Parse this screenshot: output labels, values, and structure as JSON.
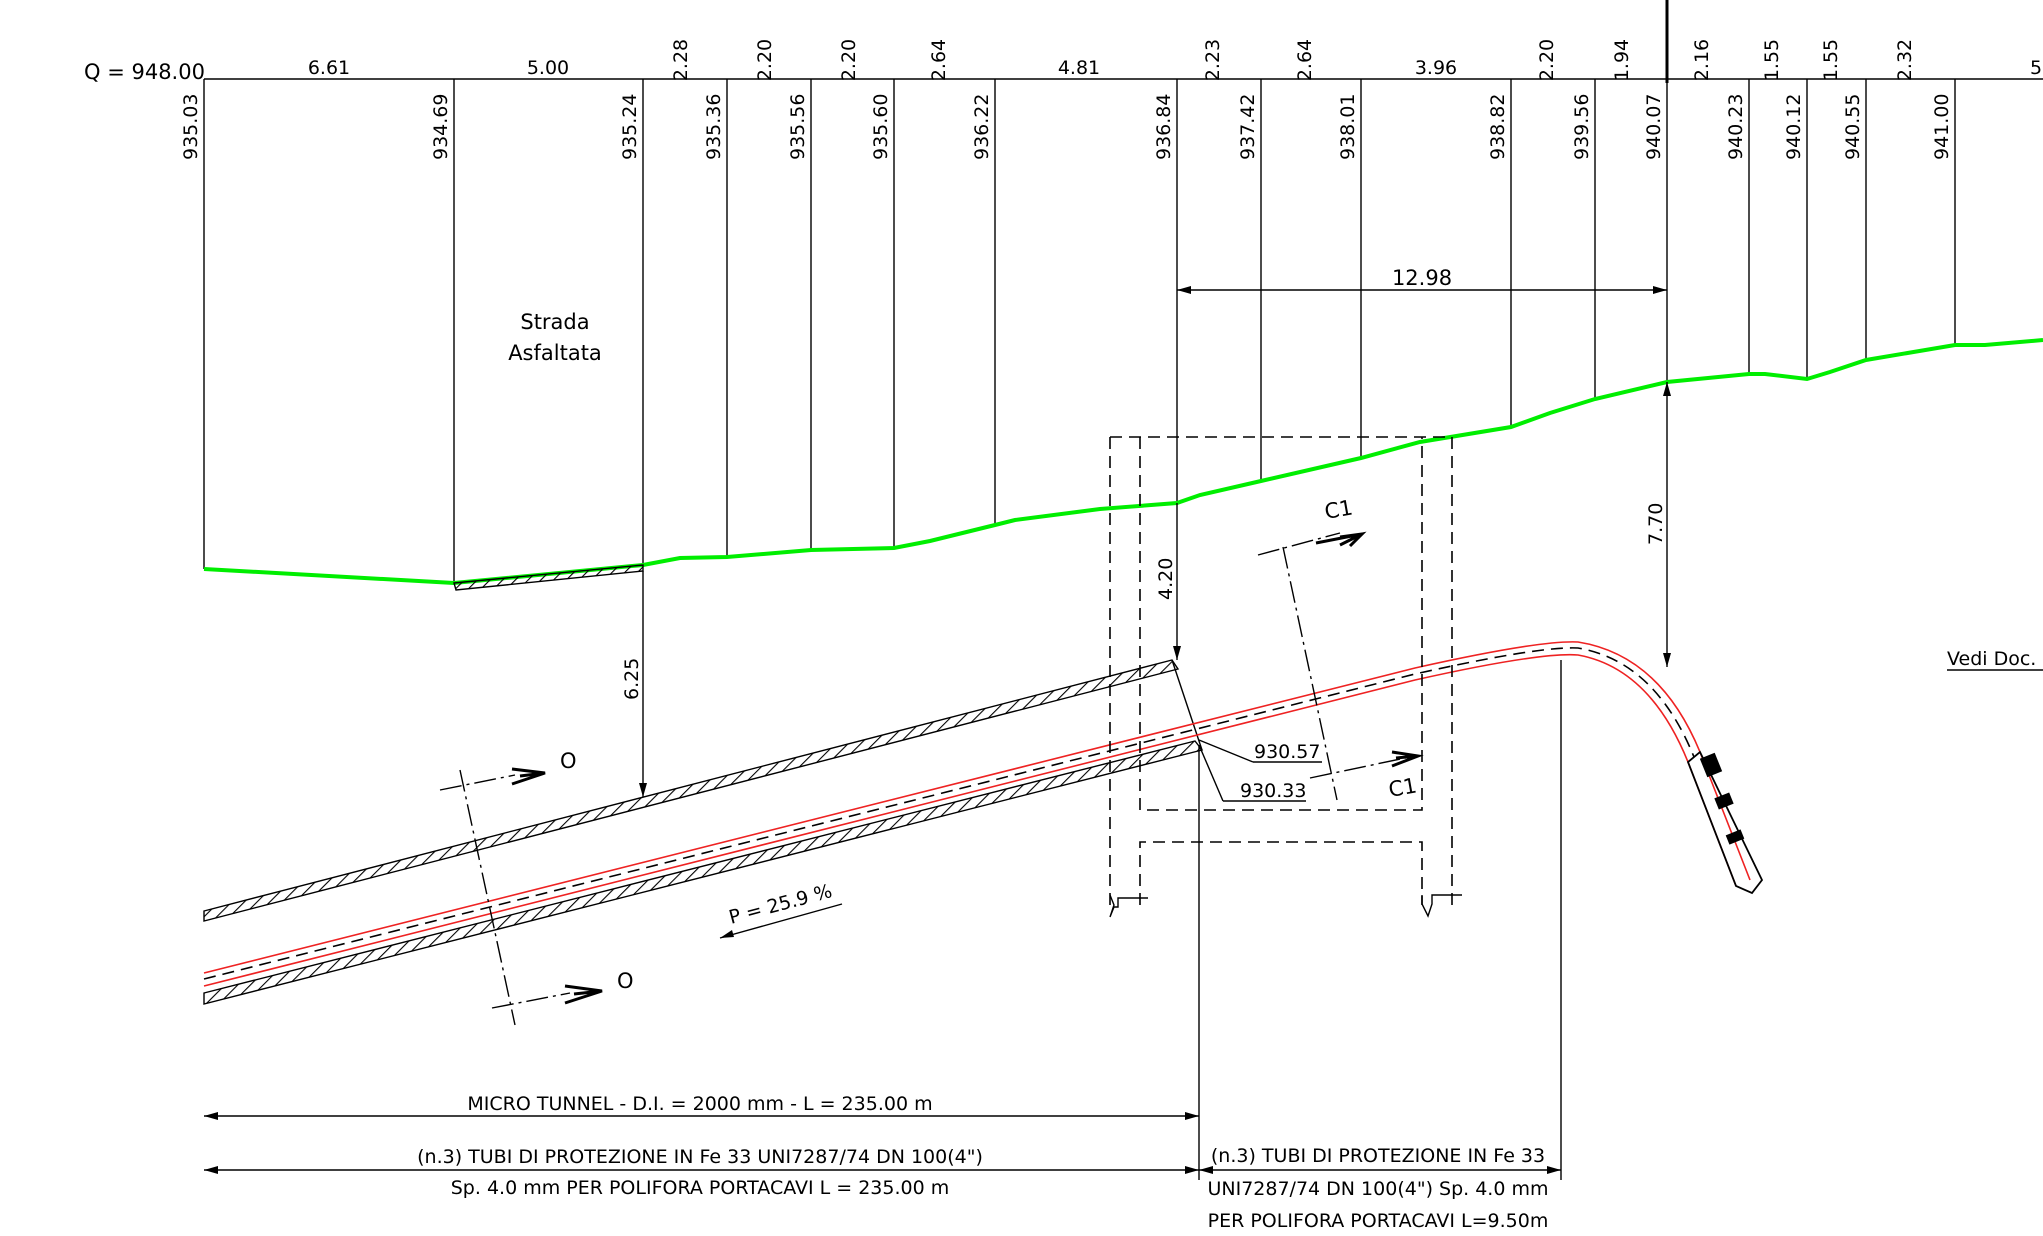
{
  "header": {
    "datum": "Q = 948.00",
    "distances": [
      "6.61",
      "5.00",
      "2.28",
      "2.20",
      "2.20",
      "2.64",
      "4.81",
      "2.23",
      "2.64",
      "3.96",
      "2.20",
      "1.94",
      "2.16",
      "1.55",
      "1.55",
      "2.32",
      "5"
    ],
    "elevations": [
      "935.03",
      "934.69",
      "935.24",
      "935.36",
      "935.56",
      "935.60",
      "936.22",
      "936.84",
      "937.42",
      "938.01",
      "938.82",
      "939.56",
      "940.07",
      "940.23",
      "940.12",
      "940.55",
      "941.00"
    ]
  },
  "labels": {
    "road_line1": "Strada",
    "road_line2": "Asfaltata",
    "dim_1298": "12.98",
    "dim_420": "4.20",
    "dim_770": "7.70",
    "dim_625": "6.25",
    "section_c1": "C1",
    "section_o": "O",
    "elev_1": "930.57",
    "elev_2": "930.33",
    "slope": "P = 25.9 %",
    "see_doc": "Vedi Doc."
  },
  "notes": {
    "microtunnel": "MICRO TUNNEL - D.I. = 2000 mm - L = 235.00 m",
    "pipes_left_1": "(n.3) TUBI DI PROTEZIONE IN Fe 33 UNI7287/74 DN 100(4\")",
    "pipes_left_2": "Sp. 4.0 mm PER POLIFORA PORTACAVI L = 235.00 m",
    "pipes_right_1": "(n.3) TUBI DI PROTEZIONE IN Fe 33",
    "pipes_right_2": "UNI7287/74 DN 100(4\") Sp. 4.0 mm",
    "pipes_right_3": "PER POLIFORA PORTACAVI L=9.50m"
  },
  "colors": {
    "ground_profile": "#00ee00",
    "pipe_outline": "#ee2222",
    "linework": "#000000"
  }
}
